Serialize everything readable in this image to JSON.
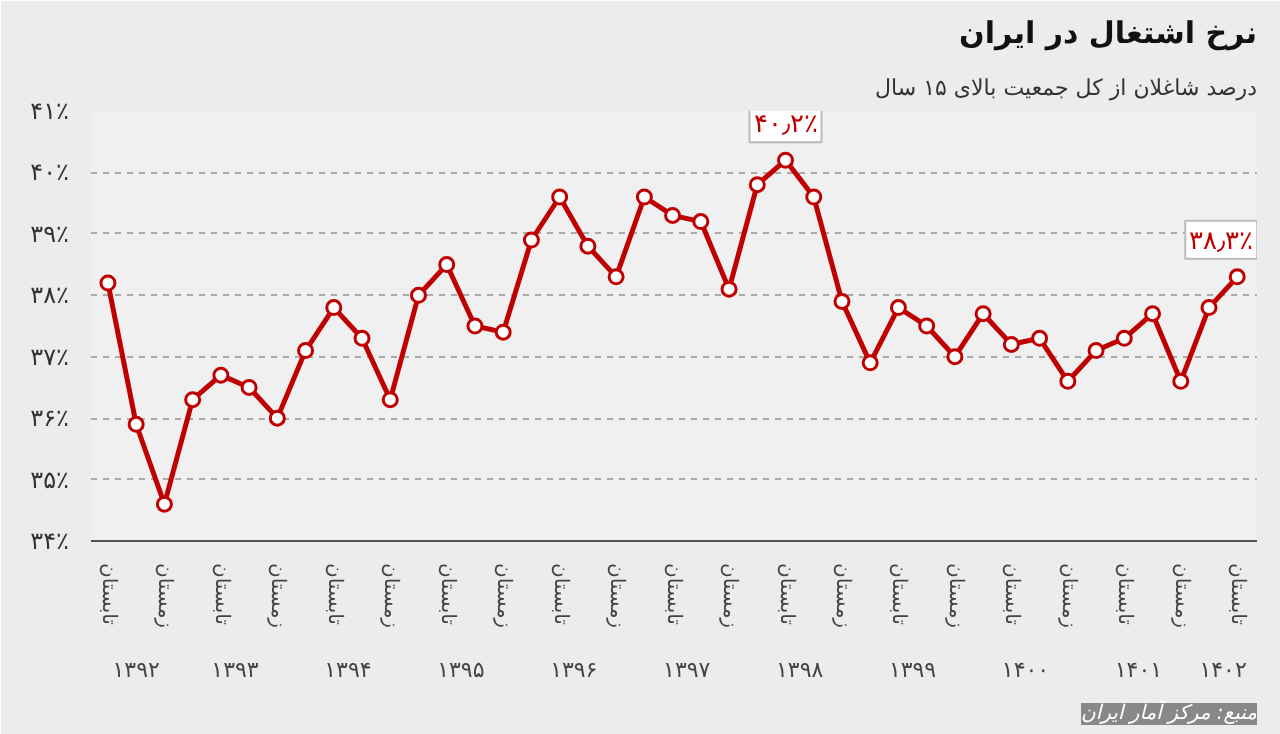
{
  "chart_data": {
    "type": "line",
    "title": "نرخ اشتغال در ایران",
    "subtitle": "درصد شاغلان از کل جمعیت بالای ۱۵ سال",
    "categories": [
      "تابستان",
      null,
      "زمستان",
      null,
      "تابستان",
      null,
      "زمستان",
      null,
      "تابستان",
      null,
      "زمستان",
      null,
      "تابستان",
      null,
      "زمستان",
      null,
      "تابستان",
      null,
      "زمستان",
      null,
      "تابستان",
      null,
      "زمستان",
      null,
      "تابستان",
      null,
      "زمستان",
      null,
      "تابستان",
      null,
      "زمستان",
      null,
      "تابستان",
      null,
      "زمستان",
      null,
      "تابستان",
      null,
      "زمستان",
      null,
      "تابستان"
    ],
    "series": [
      {
        "color": "#c00000",
        "values": [
          38.2,
          35.9,
          34.6,
          36.3,
          36.7,
          36.5,
          36.0,
          37.1,
          37.8,
          37.3,
          36.3,
          38.0,
          38.5,
          37.5,
          37.4,
          38.9,
          39.6,
          38.8,
          38.3,
          39.6,
          39.3,
          39.2,
          38.1,
          39.8,
          40.2,
          39.6,
          37.9,
          36.9,
          37.8,
          37.5,
          37.0,
          37.7,
          37.2,
          37.3,
          36.6,
          37.1,
          37.3,
          37.7,
          36.6,
          37.8,
          38.3
        ],
        "value_labels": [
          null,
          null,
          null,
          null,
          null,
          null,
          null,
          null,
          null,
          null,
          null,
          null,
          null,
          null,
          null,
          null,
          null,
          null,
          null,
          null,
          null,
          null,
          null,
          null,
          "۴۰٫۲٪",
          null,
          null,
          null,
          null,
          null,
          null,
          null,
          null,
          null,
          null,
          null,
          null,
          null,
          null,
          null,
          "۳۸٫۳٪"
        ]
      }
    ],
    "ylim": [
      34,
      41
    ],
    "yticks": [
      {
        "value": 34,
        "label": "۳۴٪"
      },
      {
        "value": 35,
        "label": "۳۵٪"
      },
      {
        "value": 36,
        "label": "۳۶٪"
      },
      {
        "value": 37,
        "label": "۳۷٪"
      },
      {
        "value": 38,
        "label": "۳۸٪"
      },
      {
        "value": 39,
        "label": "۳۹٪"
      },
      {
        "value": 40,
        "label": "۴۰٪"
      },
      {
        "value": 41,
        "label": "۴۱٪"
      }
    ],
    "grid": "y",
    "marker": "circle",
    "line_style": "solid",
    "annotations": [
      "۱۳۹۲",
      "۱۳۹۳",
      "۱۳۹۴",
      "۱۳۹۵",
      "۱۳۹۶",
      "۱۳۹۷",
      "۱۳۹۸",
      "۱۳۹۹",
      "۱۴۰۰",
      "۱۴۰۱",
      "۱۴۰۲",
      "منبع: مرکز آمار ایران"
    ]
  }
}
